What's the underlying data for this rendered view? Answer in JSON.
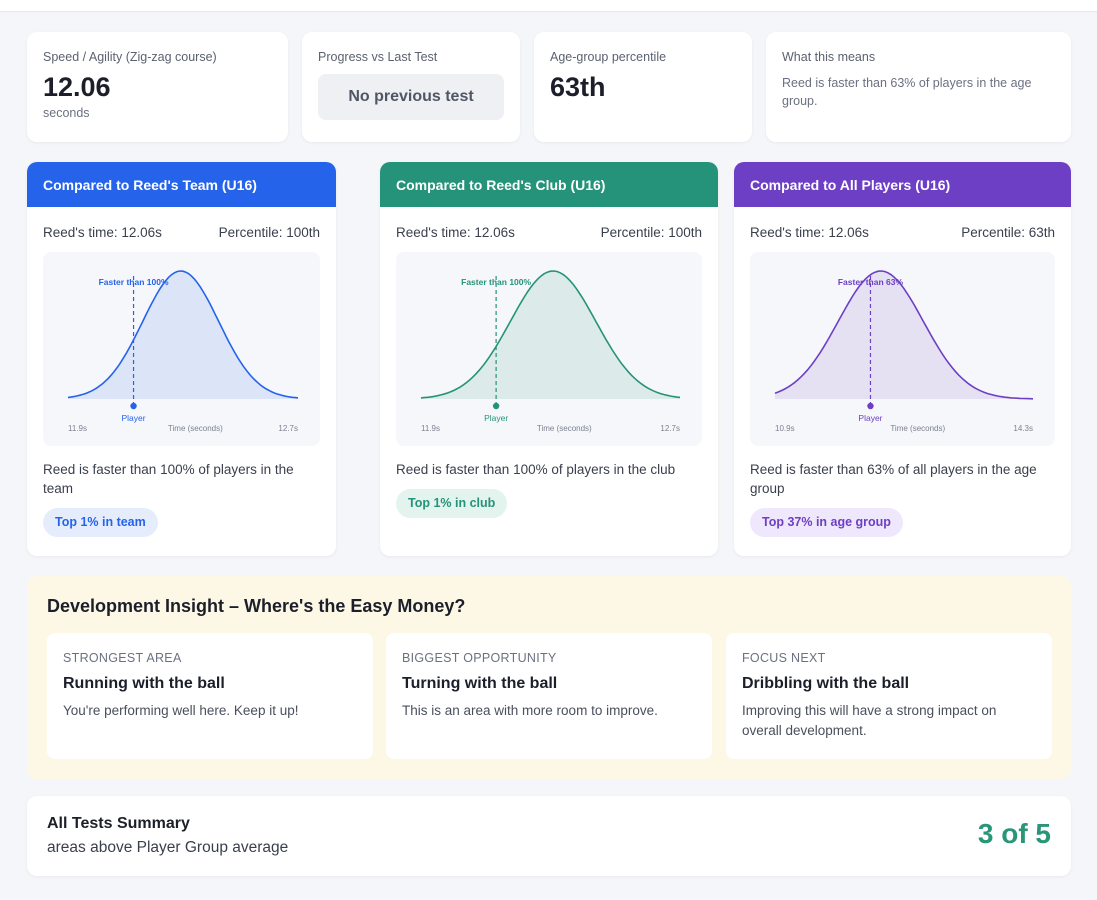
{
  "stats": [
    {
      "label": "Speed / Agility (Zig-zag course)",
      "value": "12.06",
      "unit": "seconds"
    },
    {
      "label": "Progress vs Last Test",
      "pill": "No previous test"
    },
    {
      "label": "Age-group percentile",
      "value": "63th"
    },
    {
      "label": "What this means",
      "desc": "Reed is faster than 63% of players in the age group."
    }
  ],
  "comparisons": [
    {
      "title": "Compared to Reed's Team (U16)",
      "time": "Reed's time: 12.06s",
      "percentile": "Percentile: 100th",
      "chart_label": "Faster than 100%",
      "player_label": "Player",
      "axis_min": "11.9s",
      "axis_mid": "Time (seconds)",
      "axis_max": "12.7s",
      "text": "Reed is faster than 100% of players in the team",
      "badge": "Top 1% in team",
      "color": "#2563eb"
    },
    {
      "title": "Compared to Reed's Club (U16)",
      "time": "Reed's time: 12.06s",
      "percentile": "Percentile: 100th",
      "chart_label": "Faster than 100%",
      "player_label": "Player",
      "axis_min": "11.9s",
      "axis_mid": "Time (seconds)",
      "axis_max": "12.7s",
      "text": "Reed is faster than 100% of players in the club",
      "badge": "Top 1% in club",
      "color": "#25937a"
    },
    {
      "title": "Compared to All Players (U16)",
      "time": "Reed's time: 12.06s",
      "percentile": "Percentile: 63th",
      "chart_label": "Faster than 63%",
      "player_label": "Player",
      "axis_min": "10.9s",
      "axis_mid": "Time (seconds)",
      "axis_max": "14.3s",
      "text": "Reed is faster than 63% of all players in the age group",
      "badge": "Top 37% in age group",
      "color": "#6d3fc4"
    }
  ],
  "insight": {
    "title": "Development Insight – Where's the Easy Money?",
    "cards": [
      {
        "label": "STRONGEST AREA",
        "head": "Running with the ball",
        "desc": "You're performing well here. Keep it up!"
      },
      {
        "label": "BIGGEST OPPORTUNITY",
        "head": "Turning with the ball",
        "desc": "This is an area with more room to improve."
      },
      {
        "label": "FOCUS NEXT",
        "head": "Dribbling with the ball",
        "desc": "Improving this will have a strong impact on overall development."
      }
    ]
  },
  "summary": {
    "title": "All Tests Summary",
    "sub": "areas above Player Group average",
    "value": "3 of 5"
  }
}
